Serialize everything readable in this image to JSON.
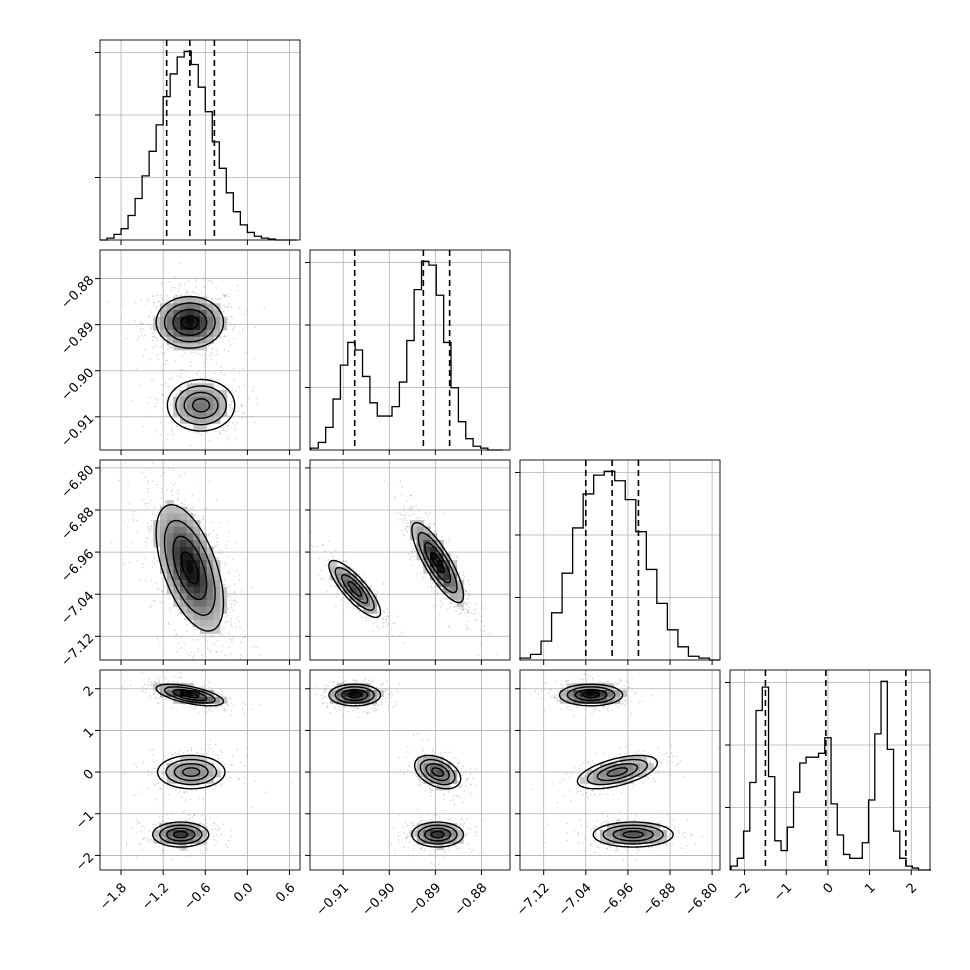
{
  "figure": {
    "type": "corner-plot",
    "dimensions": 4,
    "grid": true,
    "colors": {
      "line": "#000000",
      "grid": "#b0b0b0",
      "scatter": "#8c8c8c"
    }
  },
  "params": [
    {
      "ticks": [
        -1.8,
        -1.2,
        -0.6,
        0.0,
        0.6
      ],
      "tick_labels": [
        "−1.8",
        "−1.2",
        "−0.6",
        "0.0",
        "0.6"
      ],
      "range": [
        -2.1,
        0.75
      ],
      "quantiles": [
        -1.15,
        -0.82,
        -0.47
      ],
      "modes": [
        {
          "mu": -0.82,
          "sd": 0.24,
          "w": 1.0
        }
      ]
    },
    {
      "ticks": [
        -0.91,
        -0.9,
        -0.89,
        -0.88
      ],
      "tick_labels": [
        "−0.91",
        "−0.90",
        "−0.89",
        "−0.88"
      ],
      "range": [
        -0.9172,
        -0.8738
      ],
      "quantiles": [
        -0.9075,
        -0.8926,
        -0.8869
      ],
      "modes": [
        {
          "mu": -0.9075,
          "sd": 0.0028,
          "w": 0.33
        },
        {
          "mu": -0.8895,
          "sd": 0.0028,
          "w": 0.67
        }
      ]
    },
    {
      "ticks": [
        -7.12,
        -7.04,
        -6.96,
        -6.88,
        -6.8
      ],
      "tick_labels": [
        "−7.12",
        "−7.04",
        "−6.96",
        "−6.88",
        "−6.80"
      ],
      "range": [
        -7.165,
        -6.785
      ],
      "quantiles": [
        -7.04,
        -6.99,
        -6.94
      ],
      "modes": [
        {
          "mu": -6.99,
          "sd": 0.06,
          "w": 1.0
        }
      ]
    },
    {
      "ticks": [
        -2,
        -1,
        0,
        1,
        2
      ],
      "tick_labels": [
        "−2",
        "−1",
        "0",
        "1",
        "2"
      ],
      "range": [
        -2.35,
        2.45
      ],
      "quantiles": [
        -1.5,
        -0.05,
        1.87
      ],
      "modes": [
        {
          "mu": -1.5,
          "sd": 0.15,
          "w": 0.33
        },
        {
          "mu": 0.0,
          "sd": 0.2,
          "w": 0.3
        },
        {
          "mu": 1.85,
          "sd": 0.13,
          "w": 0.37
        }
      ]
    }
  ],
  "chart_data": {
    "type": "corner",
    "histograms": [
      {
        "param_index": 0,
        "bins": [
          -2.05,
          -1.95,
          -1.85,
          -1.75,
          -1.65,
          -1.55,
          -1.45,
          -1.35,
          -1.25,
          -1.15,
          -1.05,
          -0.95,
          -0.85,
          -0.75,
          -0.65,
          -0.55,
          -0.45,
          -0.35,
          -0.25,
          -0.15,
          -0.05,
          0.05,
          0.15,
          0.25,
          0.35,
          0.45,
          0.55,
          0.65
        ],
        "values": [
          0,
          0.01,
          0.03,
          0.06,
          0.13,
          0.22,
          0.34,
          0.47,
          0.61,
          0.76,
          0.88,
          0.97,
          1.0,
          0.93,
          0.81,
          0.68,
          0.52,
          0.38,
          0.25,
          0.15,
          0.08,
          0.04,
          0.02,
          0.01,
          0.005,
          0,
          0,
          0
        ]
      },
      {
        "param_index": 1,
        "bins": [
          -0.9162,
          -0.9146,
          -0.913,
          -0.9114,
          -0.9098,
          -0.9082,
          -0.9066,
          -0.905,
          -0.9034,
          -0.9018,
          -0.9002,
          -0.8986,
          -0.897,
          -0.8954,
          -0.8938,
          -0.8922,
          -0.8906,
          -0.889,
          -0.8874,
          -0.8858,
          -0.8842,
          -0.8826,
          -0.881,
          -0.8794,
          -0.8778,
          -0.8762
        ],
        "values": [
          0.01,
          0.04,
          0.12,
          0.27,
          0.45,
          0.57,
          0.53,
          0.39,
          0.25,
          0.18,
          0.18,
          0.23,
          0.36,
          0.58,
          0.85,
          1.0,
          0.98,
          0.82,
          0.57,
          0.33,
          0.15,
          0.06,
          0.02,
          0.01,
          0,
          0
        ]
      },
      {
        "param_index": 2,
        "bins": [
          -7.155,
          -7.135,
          -7.115,
          -7.095,
          -7.075,
          -7.055,
          -7.035,
          -7.015,
          -6.995,
          -6.975,
          -6.955,
          -6.935,
          -6.915,
          -6.895,
          -6.875,
          -6.855,
          -6.835,
          -6.815,
          -6.795
        ],
        "values": [
          0.01,
          0.03,
          0.1,
          0.25,
          0.46,
          0.7,
          0.88,
          0.98,
          1.0,
          0.95,
          0.85,
          0.68,
          0.48,
          0.3,
          0.16,
          0.07,
          0.02,
          0.01,
          0
        ]
      },
      {
        "param_index": 3,
        "bins": [
          -2.25,
          -2.1,
          -1.95,
          -1.8,
          -1.65,
          -1.5,
          -1.35,
          -1.2,
          -1.05,
          -0.9,
          -0.75,
          -0.6,
          -0.45,
          -0.3,
          -0.15,
          0.0,
          0.15,
          0.3,
          0.45,
          0.6,
          0.75,
          0.9,
          1.05,
          1.2,
          1.35,
          1.5,
          1.65,
          1.8,
          1.95,
          2.1,
          2.25,
          2.4
        ],
        "values": [
          0.02,
          0.06,
          0.2,
          0.45,
          0.82,
          0.94,
          0.48,
          0.15,
          0.1,
          0.22,
          0.4,
          0.55,
          0.58,
          0.58,
          0.6,
          0.68,
          0.34,
          0.18,
          0.08,
          0.06,
          0.06,
          0.14,
          0.36,
          0.7,
          0.97,
          0.62,
          0.2,
          0.06,
          0.02,
          0.01,
          0,
          0
        ]
      }
    ],
    "joint_modes": [
      {
        "x": 0,
        "y": 1,
        "clusters": [
          {
            "cx": -0.82,
            "cy": -0.8895,
            "sx": 0.24,
            "sy": 0.0028,
            "rho": 0.0,
            "w": 0.67
          },
          {
            "cx": -0.66,
            "cy": -0.9075,
            "sx": 0.24,
            "sy": 0.0028,
            "rho": 0.0,
            "w": 0.33
          }
        ]
      },
      {
        "x": 0,
        "y": 2,
        "clusters": [
          {
            "cx": -0.82,
            "cy": -6.99,
            "sx": 0.24,
            "sy": 0.06,
            "rho": -0.55,
            "w": 1.0
          }
        ]
      },
      {
        "x": 1,
        "y": 2,
        "clusters": [
          {
            "cx": -0.9075,
            "cy": -7.03,
            "sx": 0.0028,
            "sy": 0.027,
            "rho": -0.82,
            "w": 0.33
          },
          {
            "cx": -0.8895,
            "cy": -6.98,
            "sx": 0.0028,
            "sy": 0.038,
            "rho": -0.82,
            "w": 0.67
          }
        ]
      },
      {
        "x": 0,
        "y": 3,
        "clusters": [
          {
            "cx": -0.82,
            "cy": 1.85,
            "sx": 0.24,
            "sy": 0.13,
            "rho": -0.6,
            "w": 0.37
          },
          {
            "cx": -0.8,
            "cy": 0.0,
            "sx": 0.24,
            "sy": 0.2,
            "rho": 0.0,
            "w": 0.3
          },
          {
            "cx": -0.95,
            "cy": -1.5,
            "sx": 0.2,
            "sy": 0.15,
            "rho": 0.0,
            "w": 0.33
          }
        ]
      },
      {
        "x": 1,
        "y": 3,
        "clusters": [
          {
            "cx": -0.9075,
            "cy": 1.85,
            "sx": 0.0028,
            "sy": 0.13,
            "rho": 0.0,
            "w": 0.37
          },
          {
            "cx": -0.8895,
            "cy": 0.0,
            "sx": 0.0025,
            "sy": 0.2,
            "rho": -0.4,
            "w": 0.3
          },
          {
            "cx": -0.8895,
            "cy": -1.5,
            "sx": 0.0028,
            "sy": 0.15,
            "rho": 0.0,
            "w": 0.33
          }
        ]
      },
      {
        "x": 2,
        "y": 3,
        "clusters": [
          {
            "cx": -7.03,
            "cy": 1.85,
            "sx": 0.03,
            "sy": 0.13,
            "rho": 0.0,
            "w": 0.37
          },
          {
            "cx": -6.98,
            "cy": 0.0,
            "sx": 0.038,
            "sy": 0.2,
            "rho": 0.55,
            "w": 0.3
          },
          {
            "cx": -6.95,
            "cy": -1.5,
            "sx": 0.038,
            "sy": 0.15,
            "rho": 0.0,
            "w": 0.33
          }
        ]
      }
    ]
  }
}
